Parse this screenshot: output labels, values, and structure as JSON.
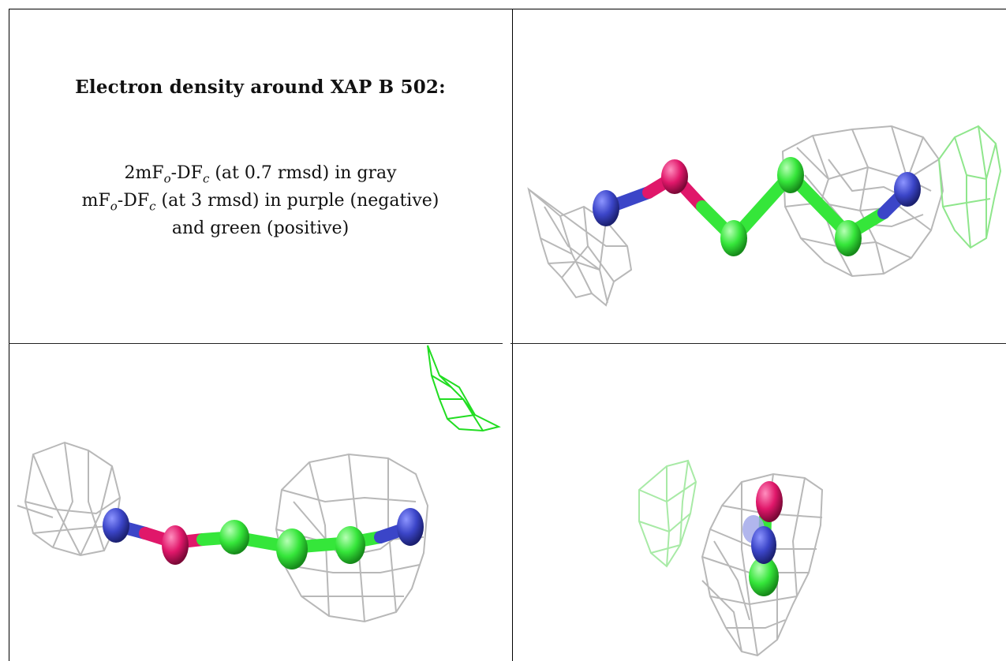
{
  "caption": {
    "title": "Electron density around XAP B 502:",
    "line1": {
      "prefix": "2mF",
      "sub1": "o",
      "mid": "-DF",
      "sub2": "c",
      "suffix": " (at 0.7 rmsd) in gray"
    },
    "line2": {
      "prefix": "mF",
      "sub1": "o",
      "mid": "-DF",
      "sub2": "c",
      "suffix": " (at 3 rmsd) in purple (negative)"
    },
    "line3": "and green (positive)"
  },
  "colors": {
    "nitrogen": "#3b45c8",
    "oxygen": "#e0176a",
    "carbon": "#35e63a",
    "density_2fofc": "#b8b8b8",
    "density_positive": "#32d42b",
    "border": "#000000"
  },
  "panels": [
    {
      "name": "top-right view",
      "atoms": [
        "N",
        "O",
        "C",
        "C",
        "C",
        "N"
      ]
    },
    {
      "name": "bottom-left view",
      "atoms": [
        "N",
        "O",
        "C",
        "C",
        "C",
        "N"
      ]
    },
    {
      "name": "bottom-right view",
      "atoms": [
        "O",
        "N",
        "C"
      ]
    }
  ]
}
